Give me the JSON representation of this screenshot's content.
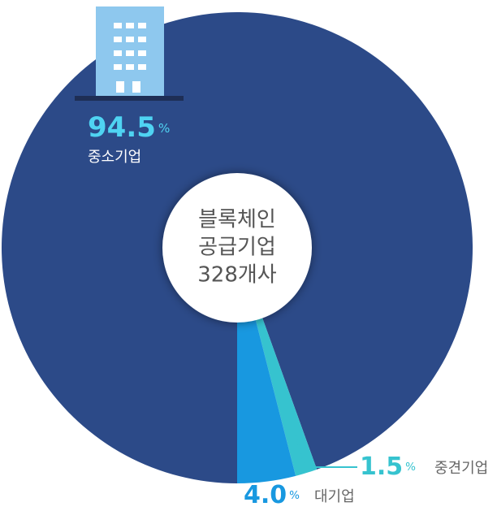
{
  "chart_data": {
    "type": "pie",
    "donut": true,
    "categories": [
      "중소기업",
      "중견기업",
      "대기업"
    ],
    "values": [
      94.5,
      1.5,
      4.0
    ],
    "value_labels": [
      "94.5",
      "1.5",
      "4.0"
    ],
    "unit": "%",
    "colors": [
      "#2c4a88",
      "#36c3cf",
      "#1898e0"
    ],
    "center_label": [
      "블록체인",
      "공급기업",
      "328개사"
    ]
  }
}
